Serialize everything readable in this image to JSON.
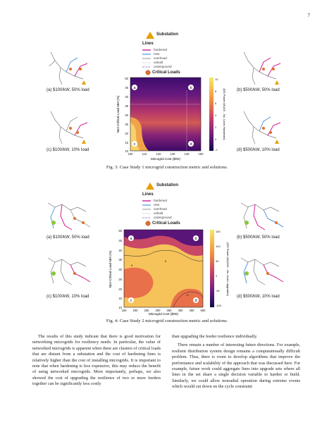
{
  "page_number": "7",
  "legend": {
    "substation": "Substation",
    "lines_title": "Lines",
    "line_types": [
      "hardened",
      "new",
      "overhead",
      "unbuilt",
      "underground"
    ],
    "critical_loads": "Critical Loads",
    "colors": {
      "hardened": "#d0208f",
      "new": "#2e7bd6",
      "overhead": "#7a7a7a",
      "unbuilt": "#bcbcbc",
      "underground": "#8b6bb8",
      "substation": "#e6a000",
      "critical": "#e0702c"
    }
  },
  "figure3": {
    "panel_a": "(a) $100/kW, 50% load",
    "panel_b": "(b) $500/kW, 50% load",
    "panel_c": "(c) $100/kW, 10% load",
    "panel_d": "(d) $500/kW, 10% load",
    "ylabel": "Non-Critical Load Met (%)",
    "xlabel": "Microgrid Cost ($/W)",
    "cbar_label": "(DG Power (W)/10 - No. Lines Hardened)",
    "yticks": [
      "50",
      "45",
      "40",
      "35",
      "30",
      "25",
      "20",
      "15",
      "10"
    ],
    "xticks": [
      "100",
      "110",
      "120",
      "130",
      "140",
      "150"
    ],
    "cbar_ticks": [
      "10",
      "8",
      "6",
      "4",
      "2",
      "0",
      "-2"
    ],
    "corner_labels": [
      "a",
      "b",
      "c",
      "d"
    ],
    "caption": "Fig. 3: Case Study 1 microgrid construction metric and solutions."
  },
  "figure4": {
    "panel_a": "(a) $100/kW, 50% load",
    "panel_b": "(b) $500/kW, 50% load",
    "panel_c": "(c) $100/kW, 10% load",
    "panel_d": "(d) $500/kW, 10% load",
    "ylabel": "Non-Critical Load Met (%)",
    "xlabel": "Microgrid Cost ($/W)",
    "cbar_label": "(DG Power (W)/100 - No. Lines Upgraded)",
    "yticks": [
      "50",
      "45",
      "40",
      "35",
      "30",
      "25",
      "20",
      "15",
      "10"
    ],
    "xticks": [
      "150",
      "200",
      "250",
      "300",
      "350",
      "400",
      "450",
      "500"
    ],
    "cbar_ticks": [
      "150",
      "100",
      "50",
      "0",
      "-50",
      "-100"
    ],
    "contour_labels": [
      "0",
      "0",
      "-0"
    ],
    "corner_labels": [
      "a",
      "b",
      "c",
      "d"
    ],
    "caption": "Fig. 4: Case Study 2 microgrid construction metric and solutions."
  },
  "text": {
    "left_column": "The results of this study indicate that there is good motivation for networking microgrids for resiliency needs. In particular, the value of networked microgrids is apparent when there are clusters of critical loads that are distant from a substation and the cost of hardening lines is relatively higher than the cost of installing microgrids. It is important to note that when hardening is less expensive, this may reduce the benefit of using networked microgrids. More importantly, perhaps, we also showed the cost of upgrading the resilience of two or more feeders together can be significantly less costly",
    "right_column_1": "than upgrading the feeder resilience individually.",
    "right_column_2": "There remain a number of interesting future directions. For example, resilient distribution system design remains a computationally difficult problem. Thus, there is room to develop algorithms that improve the performance and scalability of the approach that was discussed here. For example, future work could aggregate lines into upgrade sets where all lines in the set share a single decision variable to harden or build. Similarly, we could allow nonradial operation during extreme events which would cut down on the cycle constraint"
  }
}
